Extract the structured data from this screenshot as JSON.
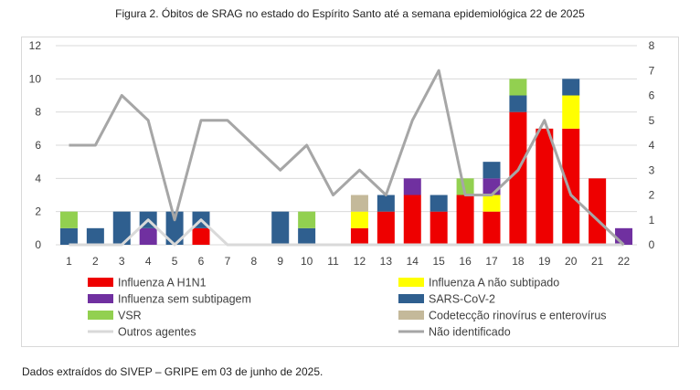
{
  "figure": {
    "title": "Figura 2. Óbitos de SRAG no estado do Espírito Santo até a semana epidemiológica 22 de 2025",
    "source_note": "Dados extraídos do SIVEP – GRIPE em 03 de junho de 2025."
  },
  "colors": {
    "h1n1": "#ee0000",
    "nao_subtipado": "#ffff00",
    "sem_subtipagem": "#7030a0",
    "sars": "#2f5f8f",
    "vsr": "#92d050",
    "codeteccao": "#c4b99a",
    "outros": "#d9d9d9",
    "nao_identificado": "#a6a6a6",
    "grid": "#d9d9d9",
    "axis_text": "#404040"
  },
  "chart_data": {
    "type": "bar",
    "stacked": true,
    "categories": [
      "1",
      "2",
      "3",
      "4",
      "5",
      "6",
      "7",
      "8",
      "9",
      "10",
      "11",
      "12",
      "13",
      "14",
      "15",
      "16",
      "17",
      "18",
      "19",
      "20",
      "21",
      "22"
    ],
    "ylim": [
      0,
      12
    ],
    "y_ticks": [
      "0",
      "2",
      "4",
      "6",
      "8",
      "10",
      "12"
    ],
    "y2lim": [
      0,
      8
    ],
    "y2_ticks": [
      "0",
      "1",
      "2",
      "3",
      "4",
      "5",
      "6",
      "7",
      "8"
    ],
    "grid": true,
    "legend_position": "bottom",
    "series": [
      {
        "key": "h1n1",
        "name": "Influenza A H1N1",
        "kind": "bar",
        "color_key": "h1n1",
        "values": [
          0,
          0,
          0,
          0,
          0,
          1,
          0,
          0,
          0,
          0,
          0,
          1,
          2,
          3,
          2,
          3,
          2,
          8,
          7,
          7,
          4,
          0
        ]
      },
      {
        "key": "nao_subtipado",
        "name": "Influenza A não subtipado",
        "kind": "bar",
        "color_key": "nao_subtipado",
        "values": [
          0,
          0,
          0,
          0,
          0,
          0,
          0,
          0,
          0,
          0,
          0,
          1,
          0,
          0,
          0,
          0,
          1,
          0,
          0,
          2,
          0,
          0
        ]
      },
      {
        "key": "sem_subtipagem",
        "name": "Influenza sem subtipagem",
        "kind": "bar",
        "color_key": "sem_subtipagem",
        "values": [
          0,
          0,
          0,
          1,
          0,
          0,
          0,
          0,
          0,
          0,
          0,
          0,
          0,
          1,
          0,
          0,
          1,
          0,
          0,
          0,
          0,
          1
        ]
      },
      {
        "key": "sars",
        "name": "SARS-CoV-2",
        "kind": "bar",
        "color_key": "sars",
        "values": [
          1,
          1,
          2,
          1,
          2,
          1,
          0,
          0,
          2,
          1,
          0,
          0,
          1,
          0,
          1,
          0,
          1,
          1,
          0,
          1,
          0,
          0
        ]
      },
      {
        "key": "vsr",
        "name": "VSR",
        "kind": "bar",
        "color_key": "vsr",
        "values": [
          1,
          0,
          0,
          0,
          0,
          0,
          0,
          0,
          0,
          1,
          0,
          0,
          0,
          0,
          0,
          1,
          0,
          1,
          0,
          0,
          0,
          0
        ]
      },
      {
        "key": "codeteccao",
        "name": "Codetecção rinovírus e enterovírus",
        "kind": "bar",
        "color_key": "codeteccao",
        "values": [
          0,
          0,
          0,
          0,
          0,
          0,
          0,
          0,
          0,
          0,
          0,
          1,
          0,
          0,
          0,
          0,
          0,
          0,
          0,
          0,
          0,
          0
        ]
      },
      {
        "key": "outros",
        "name": "Outros agentes",
        "kind": "line",
        "axis": "right",
        "color_key": "outros",
        "values": [
          0,
          0,
          0,
          1,
          0,
          1,
          0,
          0,
          0,
          0,
          0,
          0,
          0,
          0,
          0,
          0,
          0,
          0,
          0,
          0,
          0,
          0
        ]
      },
      {
        "key": "nao_identificado",
        "name": "Não identificado",
        "kind": "line",
        "axis": "right",
        "color_key": "nao_identificado",
        "values": [
          4,
          4,
          6,
          5,
          1,
          5,
          5,
          4,
          3,
          4,
          2,
          3,
          2,
          5,
          7,
          2,
          2,
          3,
          5,
          2,
          1,
          0
        ]
      }
    ],
    "legend_order": [
      "h1n1",
      "nao_subtipado",
      "sem_subtipagem",
      "sars",
      "vsr",
      "codeteccao",
      "outros",
      "nao_identificado"
    ]
  }
}
